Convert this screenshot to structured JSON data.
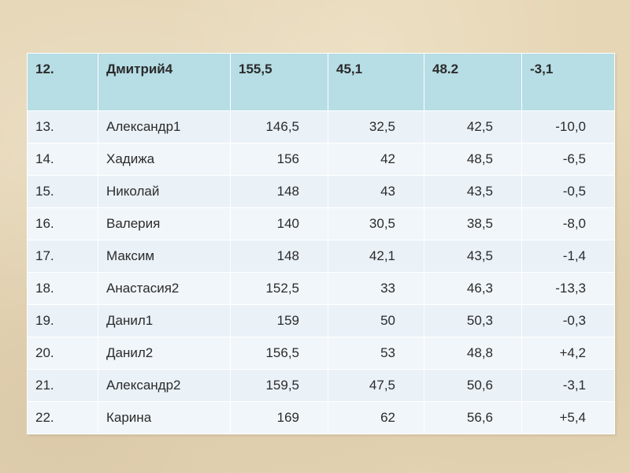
{
  "table": {
    "header": [
      "12.",
      "Дмитрий4",
      "155,5",
      "45,1",
      "48.2",
      "-3,1"
    ],
    "rows": [
      [
        "13.",
        "Александр1",
        "146,5",
        "32,5",
        "42,5",
        "-10,0"
      ],
      [
        "14.",
        "Хадижа",
        "156",
        "42",
        "48,5",
        "-6,5"
      ],
      [
        "15.",
        "Николай",
        "148",
        "43",
        "43,5",
        "-0,5"
      ],
      [
        "16.",
        "Валерия",
        "140",
        "30,5",
        "38,5",
        "-8,0"
      ],
      [
        "17.",
        "Максим",
        "148",
        "42,1",
        "43,5",
        "-1,4"
      ],
      [
        "18.",
        "Анастасия2",
        "152,5",
        "33",
        "46,3",
        "-13,3"
      ],
      [
        "19.",
        "Данил1",
        "159",
        "50",
        "50,3",
        "-0,3"
      ],
      [
        "20.",
        "Данил2",
        "156,5",
        "53",
        "48,8",
        "+4,2"
      ],
      [
        "21.",
        "Александр2",
        "159,5",
        "47,5",
        "50,6",
        "-3,1"
      ],
      [
        "22.",
        "Карина",
        "169",
        "62",
        "56,6",
        "+5,4"
      ]
    ]
  },
  "colors": {
    "background": "#e6d6b6",
    "header_fill": "#b7dde5",
    "row_fill": "#eaf1f7",
    "grid_lines": "#ffffff"
  }
}
